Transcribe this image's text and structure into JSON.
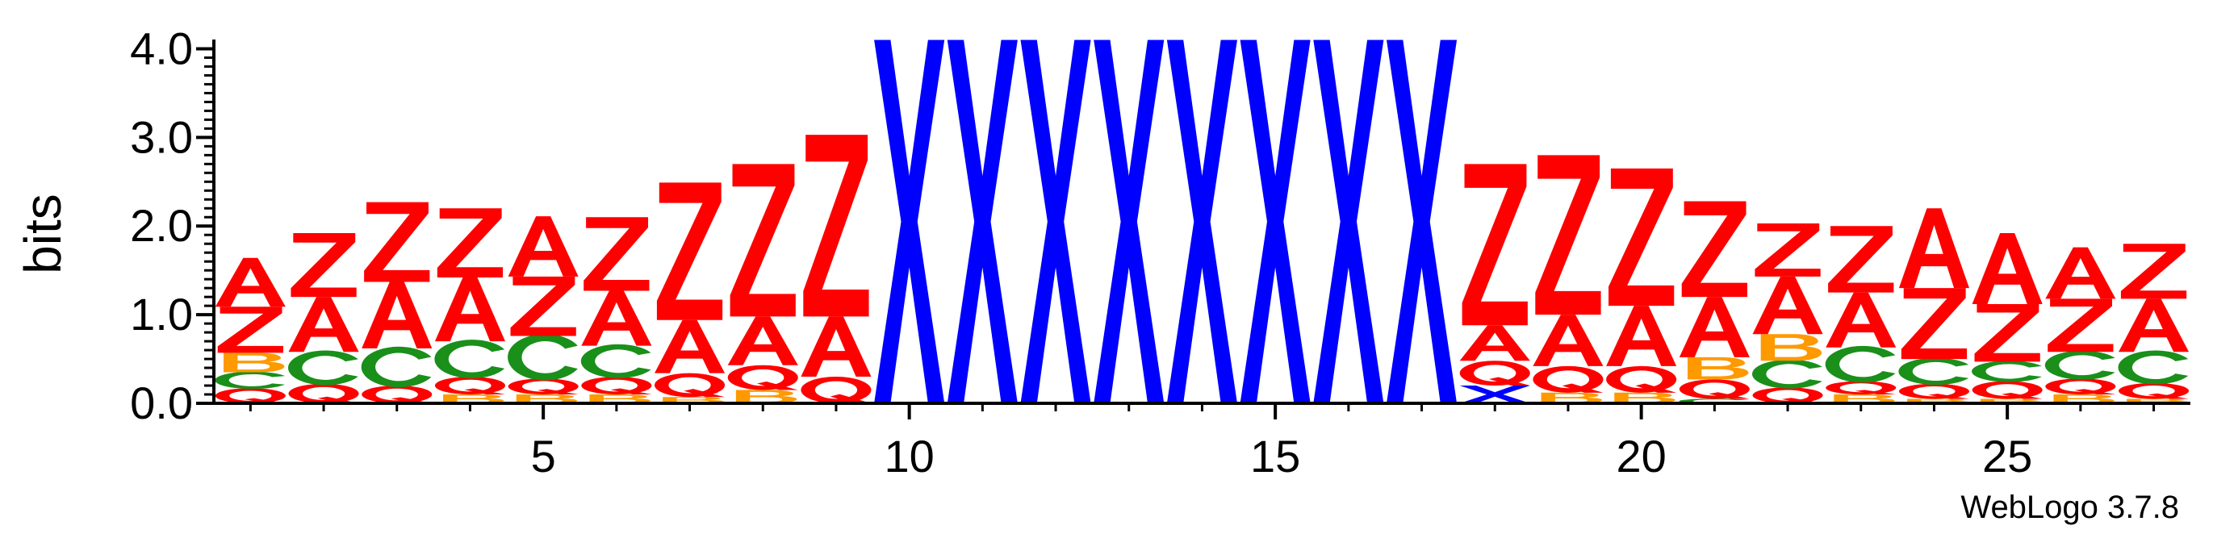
{
  "chart_data": {
    "type": "sequence-logo",
    "ylabel": "bits",
    "ylim": [
      0,
      4.0
    ],
    "yticks": [
      {
        "value": 0.0,
        "label": "0.0"
      },
      {
        "value": 1.0,
        "label": "1.0"
      },
      {
        "value": 2.0,
        "label": "2.0"
      },
      {
        "value": 3.0,
        "label": "3.0"
      },
      {
        "value": 4.0,
        "label": "4.0"
      }
    ],
    "xticks": [
      {
        "value": 5,
        "label": "5"
      },
      {
        "value": 10,
        "label": "10"
      },
      {
        "value": 15,
        "label": "15"
      },
      {
        "value": 20,
        "label": "20"
      },
      {
        "value": 25,
        "label": "25"
      }
    ],
    "credit": "WebLogo 3.7.8",
    "colors": {
      "A": "#ff0000",
      "Z": "#ff0000",
      "Q": "#ff0000",
      "C": "#1a8f1a",
      "B": "#ff9900",
      "X": "#0000ff"
    },
    "positions": [
      {
        "pos": 1,
        "stack": [
          {
            "letter": "Q",
            "bits": 0.17
          },
          {
            "letter": "C",
            "bits": 0.18
          },
          {
            "letter": "B",
            "bits": 0.22
          },
          {
            "letter": "Z",
            "bits": 0.52
          },
          {
            "letter": "A",
            "bits": 0.55
          }
        ]
      },
      {
        "pos": 2,
        "stack": [
          {
            "letter": "Q",
            "bits": 0.22
          },
          {
            "letter": "C",
            "bits": 0.36
          },
          {
            "letter": "A",
            "bits": 0.62
          },
          {
            "letter": "Z",
            "bits": 0.72
          }
        ]
      },
      {
        "pos": 3,
        "stack": [
          {
            "letter": "Q",
            "bits": 0.2
          },
          {
            "letter": "C",
            "bits": 0.42
          },
          {
            "letter": "A",
            "bits": 0.75
          },
          {
            "letter": "Z",
            "bits": 0.9
          }
        ]
      },
      {
        "pos": 4,
        "stack": [
          {
            "letter": "B",
            "bits": 0.1
          },
          {
            "letter": "Q",
            "bits": 0.2
          },
          {
            "letter": "C",
            "bits": 0.4
          },
          {
            "letter": "A",
            "bits": 0.72
          },
          {
            "letter": "Z",
            "bits": 0.78
          }
        ]
      },
      {
        "pos": 5,
        "stack": [
          {
            "letter": "B",
            "bits": 0.1
          },
          {
            "letter": "Q",
            "bits": 0.18
          },
          {
            "letter": "C",
            "bits": 0.48
          },
          {
            "letter": "Z",
            "bits": 0.67
          },
          {
            "letter": "A",
            "bits": 0.68
          }
        ]
      },
      {
        "pos": 6,
        "stack": [
          {
            "letter": "B",
            "bits": 0.1
          },
          {
            "letter": "Q",
            "bits": 0.2
          },
          {
            "letter": "C",
            "bits": 0.35
          },
          {
            "letter": "A",
            "bits": 0.62
          },
          {
            "letter": "Z",
            "bits": 0.83
          }
        ]
      },
      {
        "pos": 7,
        "stack": [
          {
            "letter": "B",
            "bits": 0.07
          },
          {
            "letter": "Q",
            "bits": 0.27
          },
          {
            "letter": "A",
            "bits": 0.6
          },
          {
            "letter": "Z",
            "bits": 1.55
          }
        ]
      },
      {
        "pos": 8,
        "stack": [
          {
            "letter": "B",
            "bits": 0.15
          },
          {
            "letter": "Q",
            "bits": 0.28
          },
          {
            "letter": "A",
            "bits": 0.55
          },
          {
            "letter": "Z",
            "bits": 1.72
          }
        ]
      },
      {
        "pos": 9,
        "stack": [
          {
            "letter": "Q",
            "bits": 0.3
          },
          {
            "letter": "A",
            "bits": 0.68
          },
          {
            "letter": "Z",
            "bits": 2.05
          }
        ]
      },
      {
        "pos": 10,
        "stack": [
          {
            "letter": "X",
            "bits": 4.1
          }
        ]
      },
      {
        "pos": 11,
        "stack": [
          {
            "letter": "X",
            "bits": 4.1
          }
        ]
      },
      {
        "pos": 12,
        "stack": [
          {
            "letter": "X",
            "bits": 4.1
          }
        ]
      },
      {
        "pos": 13,
        "stack": [
          {
            "letter": "X",
            "bits": 4.1
          }
        ]
      },
      {
        "pos": 14,
        "stack": [
          {
            "letter": "X",
            "bits": 4.1
          }
        ]
      },
      {
        "pos": 15,
        "stack": [
          {
            "letter": "X",
            "bits": 4.1
          }
        ]
      },
      {
        "pos": 16,
        "stack": [
          {
            "letter": "X",
            "bits": 4.1
          }
        ]
      },
      {
        "pos": 17,
        "stack": [
          {
            "letter": "X",
            "bits": 4.1
          }
        ]
      },
      {
        "pos": 18,
        "stack": [
          {
            "letter": "X",
            "bits": 0.2
          },
          {
            "letter": "Q",
            "bits": 0.28
          },
          {
            "letter": "A",
            "bits": 0.4
          },
          {
            "letter": "Z",
            "bits": 1.82
          }
        ]
      },
      {
        "pos": 19,
        "stack": [
          {
            "letter": "B",
            "bits": 0.12
          },
          {
            "letter": "Q",
            "bits": 0.3
          },
          {
            "letter": "A",
            "bits": 0.58
          },
          {
            "letter": "Z",
            "bits": 1.8
          }
        ]
      },
      {
        "pos": 20,
        "stack": [
          {
            "letter": "B",
            "bits": 0.12
          },
          {
            "letter": "Q",
            "bits": 0.3
          },
          {
            "letter": "A",
            "bits": 0.68
          },
          {
            "letter": "Z",
            "bits": 1.55
          }
        ]
      },
      {
        "pos": 21,
        "stack": [
          {
            "letter": "C",
            "bits": 0.05
          },
          {
            "letter": "Q",
            "bits": 0.22
          },
          {
            "letter": "B",
            "bits": 0.25
          },
          {
            "letter": "A",
            "bits": 0.68
          },
          {
            "letter": "Z",
            "bits": 1.08
          }
        ]
      },
      {
        "pos": 22,
        "stack": [
          {
            "letter": "Q",
            "bits": 0.18
          },
          {
            "letter": "C",
            "bits": 0.3
          },
          {
            "letter": "B",
            "bits": 0.3
          },
          {
            "letter": "A",
            "bits": 0.65
          },
          {
            "letter": "Z",
            "bits": 0.6
          }
        ]
      },
      {
        "pos": 23,
        "stack": [
          {
            "letter": "B",
            "bits": 0.1
          },
          {
            "letter": "Q",
            "bits": 0.15
          },
          {
            "letter": "C",
            "bits": 0.38
          },
          {
            "letter": "A",
            "bits": 0.62
          },
          {
            "letter": "Z",
            "bits": 0.75
          }
        ]
      },
      {
        "pos": 24,
        "stack": [
          {
            "letter": "B",
            "bits": 0.05
          },
          {
            "letter": "Q",
            "bits": 0.17
          },
          {
            "letter": "C",
            "bits": 0.28
          },
          {
            "letter": "Z",
            "bits": 0.8
          },
          {
            "letter": "A",
            "bits": 0.9
          }
        ]
      },
      {
        "pos": 25,
        "stack": [
          {
            "letter": "B",
            "bits": 0.05
          },
          {
            "letter": "Q",
            "bits": 0.2
          },
          {
            "letter": "C",
            "bits": 0.22
          },
          {
            "letter": "Z",
            "bits": 0.65
          },
          {
            "letter": "A",
            "bits": 0.8
          }
        ]
      },
      {
        "pos": 26,
        "stack": [
          {
            "letter": "B",
            "bits": 0.1
          },
          {
            "letter": "Q",
            "bits": 0.18
          },
          {
            "letter": "C",
            "bits": 0.3
          },
          {
            "letter": "Z",
            "bits": 0.6
          },
          {
            "letter": "A",
            "bits": 0.58
          }
        ]
      },
      {
        "pos": 27,
        "stack": [
          {
            "letter": "B",
            "bits": 0.05
          },
          {
            "letter": "Q",
            "bits": 0.18
          },
          {
            "letter": "C",
            "bits": 0.35
          },
          {
            "letter": "A",
            "bits": 0.6
          },
          {
            "letter": "Z",
            "bits": 0.62
          }
        ]
      }
    ]
  }
}
